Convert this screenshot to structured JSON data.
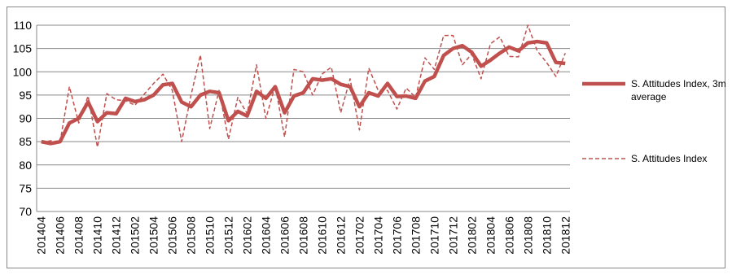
{
  "chart_data": {
    "type": "line",
    "categories": [
      "201404",
      null,
      "201406",
      null,
      "201408",
      null,
      "201410",
      null,
      "201412",
      null,
      "201502",
      null,
      "201504",
      null,
      "201506",
      null,
      "201508",
      null,
      "201510",
      null,
      "201512",
      null,
      "201602",
      null,
      "201604",
      null,
      "201606",
      null,
      "201608",
      null,
      "201610",
      null,
      "201612",
      null,
      "201702",
      null,
      "201704",
      null,
      "201706",
      null,
      "201708",
      null,
      "201710",
      null,
      "201712",
      null,
      "201802",
      null,
      "201804",
      null,
      "201806",
      null,
      "201808",
      null,
      "201810",
      null,
      "201812"
    ],
    "series": [
      {
        "name": "S. Attitudes Index, 3m average",
        "color": "#c0504d",
        "style": "solid",
        "values": [
          85,
          84.6,
          85,
          89,
          90,
          93.5,
          89.3,
          91.2,
          91,
          94.3,
          93.6,
          94,
          95,
          97.2,
          97.5,
          93.5,
          92.5,
          95,
          95.8,
          95.5,
          89.5,
          91.5,
          90.5,
          95.8,
          94.3,
          96.8,
          91.2,
          94.8,
          95.5,
          98.5,
          98.2,
          98.5,
          97.3,
          96.8,
          92.5,
          95.5,
          94.8,
          97.5,
          94.7,
          94.8,
          94.3,
          98,
          99,
          103.5,
          105,
          105.6,
          104.2,
          101.2,
          102.5,
          104,
          105.3,
          104.5,
          106.2,
          106.5,
          106.2,
          102,
          101.8
        ]
      },
      {
        "name": "S. Attitudes Index",
        "color": "#c0504d",
        "style": "dashed",
        "values": [
          84.8,
          85.2,
          84.8,
          96.8,
          89,
          94.8,
          83.8,
          95.3,
          94,
          93.8,
          92.8,
          95.2,
          97.5,
          99.5,
          96,
          85,
          95,
          103.6,
          87.8,
          96,
          85.5,
          94.5,
          91,
          101.5,
          90,
          97,
          86,
          100.5,
          100,
          95,
          99.5,
          101,
          91.2,
          98.5,
          87.5,
          100.8,
          96,
          96,
          92,
          96.5,
          94.5,
          103,
          100.5,
          107.8,
          107.8,
          101.5,
          103.8,
          98.5,
          106,
          107.5,
          103.3,
          103.2,
          110,
          104.5,
          102,
          99,
          104
        ]
      }
    ],
    "ylim": [
      70,
      110
    ],
    "yticks": [
      70,
      75,
      80,
      85,
      90,
      95,
      100,
      105,
      110
    ],
    "grid": true,
    "legend": "right"
  }
}
